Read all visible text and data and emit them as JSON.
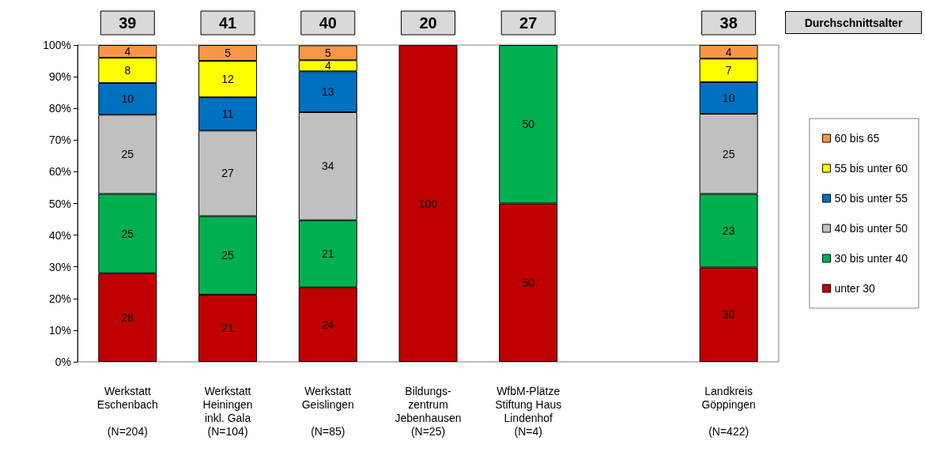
{
  "chart_data": {
    "type": "bar",
    "stacked": true,
    "legend": "right",
    "categories": [
      "Werkstatt\nEschenbach\n\n(N=204)",
      "Werkstatt\nHeiningen\ninkl. Gala\n(N=104)",
      "Werkstatt\nGeislingen\n\n(N=85)",
      "Bildungs-\nzentrum\nJebenhausen\n(N=25)",
      "WfbM-Plätze\nStiftung Haus\nLindenhof\n(N=4)",
      null,
      "Landkreis\nGöppingen\n\n(N=422)"
    ],
    "series": [
      {
        "name": "unter 30",
        "color": "#c00000",
        "values": [
          28,
          21.2,
          23.5,
          100,
          50,
          null,
          29.8
        ],
        "value_labels": [
          "28",
          "21",
          "24",
          "100",
          "50",
          null,
          "30"
        ]
      },
      {
        "name": "30 bis unter 40",
        "color": "#00b050",
        "values": [
          25,
          24.8,
          21.2,
          null,
          50,
          null,
          23.2
        ],
        "value_labels": [
          "25",
          "25",
          "21",
          null,
          "50",
          null,
          "23"
        ]
      },
      {
        "name": "40 bis unter 50",
        "color": "#c0c0c0",
        "values": [
          25,
          27,
          34.1,
          null,
          null,
          null,
          25.3
        ],
        "value_labels": [
          "25",
          "27",
          "34",
          null,
          null,
          null,
          "25"
        ]
      },
      {
        "name": "50 bis unter 55",
        "color": "#0070c0",
        "values": [
          10,
          10.5,
          12.9,
          null,
          null,
          null,
          10
        ],
        "value_labels": [
          "10",
          "11",
          "13",
          null,
          null,
          null,
          "10"
        ]
      },
      {
        "name": "55 bis unter 60",
        "color": "#ffff00",
        "values": [
          8,
          11.5,
          3.5,
          null,
          null,
          null,
          7.4
        ],
        "value_labels": [
          "8",
          "12",
          "4",
          null,
          null,
          null,
          "7"
        ]
      },
      {
        "name": "60 bis 65",
        "color": "#f79646",
        "values": [
          4,
          5,
          4.7,
          null,
          null,
          null,
          4.3
        ],
        "value_labels": [
          "4",
          "5",
          "5",
          null,
          null,
          null,
          "4"
        ]
      }
    ],
    "ylim": [
      0,
      100
    ],
    "yticks": [
      {
        "value": 0,
        "label": "0%"
      },
      {
        "value": 10,
        "label": "10%"
      },
      {
        "value": 20,
        "label": "20%"
      },
      {
        "value": 30,
        "label": "30%"
      },
      {
        "value": 40,
        "label": "40%"
      },
      {
        "value": 50,
        "label": "50%"
      },
      {
        "value": 60,
        "label": "60%"
      },
      {
        "value": 70,
        "label": "70%"
      },
      {
        "value": 80,
        "label": "80%"
      },
      {
        "value": 90,
        "label": "90%"
      },
      {
        "value": 100,
        "label": "100%"
      }
    ],
    "annotations": [
      "Durchschnittsalter",
      "39",
      "41",
      "40",
      "20",
      "27",
      "38"
    ]
  }
}
